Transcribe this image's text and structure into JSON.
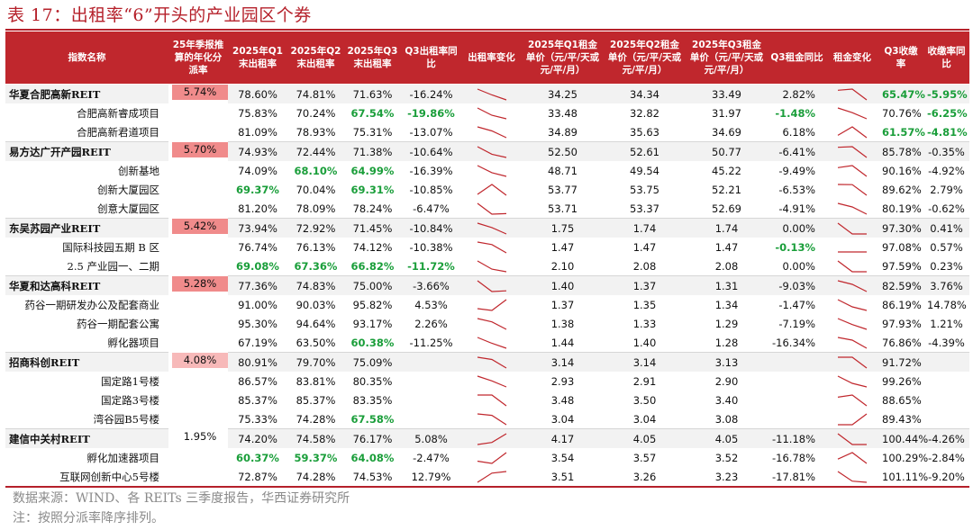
{
  "title": "表 17：出租率“6”开头的产业园区个券",
  "headers": [
    "指数名称",
    "25年季报推算的年化分派率",
    "2025年Q1末出租率",
    "2025年Q2末出租率",
    "2025年Q3末出租率",
    "Q3出租率同比",
    "出租率变化",
    "2025年Q1租金单价（元/平/天或元/平/月）",
    "2025年Q2租金单价（元/平/天或元/平/月）",
    "2025年Q3租金单价（元/平/天或元/平/月）",
    "Q3租金同比",
    "租金变化",
    "Q3收缴率",
    "收缴率同比"
  ],
  "colors": {
    "header_bg": "#c0272d",
    "green": "#1a9e3a",
    "spark": "#c0272d"
  },
  "groups": [
    {
      "name": "华夏合肥高新REIT",
      "dist": "5.74%",
      "dist_color": "#f08b8b",
      "rows": [
        {
          "name": "华夏合肥高新REIT",
          "q1": "78.60%",
          "q2": "74.81%",
          "q3": "71.63%",
          "occ_yoy": "-16.24%",
          "r1": "34.25",
          "r2": "34.34",
          "r3": "33.49",
          "rent_yoy": "2.82%",
          "col": "65.47%",
          "col_yoy": "-5.95%",
          "g": [
            "col",
            "col_yoy"
          ]
        },
        {
          "name": "合肥高新睿成项目",
          "q1": "75.83%",
          "q2": "70.24%",
          "q3": "67.54%",
          "occ_yoy": "-19.86%",
          "r1": "33.48",
          "r2": "32.82",
          "r3": "31.97",
          "rent_yoy": "-1.48%",
          "col": "70.76%",
          "col_yoy": "-6.25%",
          "g": [
            "q3",
            "occ_yoy",
            "rent_yoy",
            "col_yoy"
          ]
        },
        {
          "name": "合肥高新君道项目",
          "q1": "81.09%",
          "q2": "78.93%",
          "q3": "75.31%",
          "occ_yoy": "-13.07%",
          "r1": "34.89",
          "r2": "35.63",
          "r3": "34.69",
          "rent_yoy": "6.18%",
          "col": "61.57%",
          "col_yoy": "-4.81%",
          "g": [
            "col",
            "col_yoy"
          ]
        }
      ]
    },
    {
      "name": "易方达广开产园REIT",
      "dist": "5.70%",
      "dist_color": "#f08b8b",
      "rows": [
        {
          "name": "易方达广开产园REIT",
          "q1": "74.93%",
          "q2": "72.44%",
          "q3": "71.38%",
          "occ_yoy": "-10.64%",
          "r1": "52.50",
          "r2": "52.61",
          "r3": "50.77",
          "rent_yoy": "-6.41%",
          "col": "85.78%",
          "col_yoy": "-0.35%",
          "g": []
        },
        {
          "name": "创新基地",
          "q1": "74.09%",
          "q2": "68.10%",
          "q3": "64.99%",
          "occ_yoy": "-16.39%",
          "r1": "48.71",
          "r2": "49.54",
          "r3": "45.22",
          "rent_yoy": "-9.49%",
          "col": "90.16%",
          "col_yoy": "-4.92%",
          "g": [
            "q2",
            "q3"
          ]
        },
        {
          "name": "创新大厦园区",
          "q1": "69.37%",
          "q2": "70.04%",
          "q3": "69.31%",
          "occ_yoy": "-10.85%",
          "r1": "53.77",
          "r2": "53.75",
          "r3": "52.21",
          "rent_yoy": "-6.53%",
          "col": "89.62%",
          "col_yoy": "2.79%",
          "g": [
            "q1",
            "q3"
          ]
        },
        {
          "name": "创意大厦园区",
          "q1": "81.20%",
          "q2": "78.09%",
          "q3": "78.24%",
          "occ_yoy": "-6.47%",
          "r1": "53.71",
          "r2": "53.37",
          "r3": "52.69",
          "rent_yoy": "-4.91%",
          "col": "80.19%",
          "col_yoy": "-0.62%",
          "g": []
        }
      ]
    },
    {
      "name": "东吴苏园产业REIT",
      "dist": "5.42%",
      "dist_color": "#f08b8b",
      "rows": [
        {
          "name": "东吴苏园产业REIT",
          "q1": "73.94%",
          "q2": "72.92%",
          "q3": "71.45%",
          "occ_yoy": "-10.84%",
          "r1": "1.75",
          "r2": "1.74",
          "r3": "1.74",
          "rent_yoy": "0.00%",
          "col": "97.30%",
          "col_yoy": "0.41%",
          "g": []
        },
        {
          "name": "国际科技园五期 B 区",
          "q1": "76.74%",
          "q2": "76.13%",
          "q3": "74.12%",
          "occ_yoy": "-10.38%",
          "r1": "1.47",
          "r2": "1.47",
          "r3": "1.47",
          "rent_yoy": "-0.13%",
          "col": "97.08%",
          "col_yoy": "0.57%",
          "g": [
            "rent_yoy"
          ]
        },
        {
          "name": "2.5 产业园一、二期",
          "q1": "69.08%",
          "q2": "67.36%",
          "q3": "66.82%",
          "occ_yoy": "-11.72%",
          "r1": "2.10",
          "r2": "2.08",
          "r3": "2.08",
          "rent_yoy": "0.00%",
          "col": "97.59%",
          "col_yoy": "0.23%",
          "g": [
            "q1",
            "q2",
            "q3",
            "occ_yoy"
          ]
        }
      ]
    },
    {
      "name": "华夏和达高科REIT",
      "dist": "5.28%",
      "dist_color": "#f08b8b",
      "rows": [
        {
          "name": "华夏和达高科REIT",
          "q1": "77.36%",
          "q2": "74.83%",
          "q3": "75.00%",
          "occ_yoy": "-3.66%",
          "r1": "1.40",
          "r2": "1.37",
          "r3": "1.31",
          "rent_yoy": "-9.03%",
          "col": "82.59%",
          "col_yoy": "3.76%",
          "g": []
        },
        {
          "name": "药谷一期研发办公及配套商业",
          "q1": "91.00%",
          "q2": "90.03%",
          "q3": "95.82%",
          "occ_yoy": "4.53%",
          "r1": "1.37",
          "r2": "1.35",
          "r3": "1.34",
          "rent_yoy": "-1.47%",
          "col": "86.19%",
          "col_yoy": "14.78%",
          "g": []
        },
        {
          "name": "药谷一期配套公寓",
          "q1": "95.30%",
          "q2": "94.64%",
          "q3": "93.17%",
          "occ_yoy": "2.26%",
          "r1": "1.38",
          "r2": "1.33",
          "r3": "1.29",
          "rent_yoy": "-7.19%",
          "col": "97.93%",
          "col_yoy": "1.21%",
          "g": []
        },
        {
          "name": "孵化器项目",
          "q1": "67.19%",
          "q2": "63.50%",
          "q3": "60.38%",
          "occ_yoy": "-11.25%",
          "r1": "1.44",
          "r2": "1.40",
          "r3": "1.28",
          "rent_yoy": "-16.34%",
          "col": "76.86%",
          "col_yoy": "-4.39%",
          "g": [
            "q3"
          ]
        }
      ]
    },
    {
      "name": "招商科创REIT",
      "dist": "4.08%",
      "dist_color": "#f7b9b9",
      "rows": [
        {
          "name": "招商科创REIT",
          "q1": "80.91%",
          "q2": "79.70%",
          "q3": "75.09%",
          "occ_yoy": "",
          "r1": "3.14",
          "r2": "3.14",
          "r3": "3.13",
          "rent_yoy": "",
          "col": "91.72%",
          "col_yoy": "",
          "g": []
        },
        {
          "name": "国定路1号楼",
          "q1": "86.57%",
          "q2": "83.81%",
          "q3": "80.35%",
          "occ_yoy": "",
          "r1": "2.93",
          "r2": "2.91",
          "r3": "2.90",
          "rent_yoy": "",
          "col": "99.26%",
          "col_yoy": "",
          "g": []
        },
        {
          "name": "国定路3号楼",
          "q1": "85.37%",
          "q2": "85.37%",
          "q3": "83.35%",
          "occ_yoy": "",
          "r1": "3.48",
          "r2": "3.50",
          "r3": "3.40",
          "rent_yoy": "",
          "col": "88.65%",
          "col_yoy": "",
          "g": []
        },
        {
          "name": "湾谷园B5号楼",
          "q1": "75.33%",
          "q2": "74.28%",
          "q3": "67.58%",
          "occ_yoy": "",
          "r1": "3.04",
          "r2": "3.04",
          "r3": "3.08",
          "rent_yoy": "",
          "col": "89.43%",
          "col_yoy": "",
          "g": [
            "q3"
          ]
        }
      ]
    },
    {
      "name": "建信中关村REIT",
      "dist": "1.95%",
      "dist_color": "#ffffff",
      "rows": [
        {
          "name": "建信中关村REIT",
          "q1": "74.20%",
          "q2": "74.58%",
          "q3": "76.17%",
          "occ_yoy": "5.08%",
          "r1": "4.17",
          "r2": "4.05",
          "r3": "4.05",
          "rent_yoy": "-11.18%",
          "col": "100.44%",
          "col_yoy": "-4.26%",
          "g": []
        },
        {
          "name": "孵化加速器项目",
          "q1": "60.37%",
          "q2": "59.37%",
          "q3": "64.08%",
          "occ_yoy": "-2.47%",
          "r1": "3.54",
          "r2": "3.57",
          "r3": "3.52",
          "rent_yoy": "-16.78%",
          "col": "100.29%",
          "col_yoy": "-2.84%",
          "g": [
            "q1",
            "q2",
            "q3"
          ]
        },
        {
          "name": "互联网创新中心5号楼",
          "q1": "72.87%",
          "q2": "74.28%",
          "q3": "74.53%",
          "occ_yoy": "12.79%",
          "r1": "3.51",
          "r2": "3.26",
          "r3": "3.23",
          "rent_yoy": "-17.81%",
          "col": "101.11%",
          "col_yoy": "-9.20%",
          "g": []
        }
      ]
    }
  ],
  "footnote_source": "数据来源：WIND、各 REITs 三季度报告，华西证券研究所",
  "footnote_note": "注：按照分派率降序排列。"
}
